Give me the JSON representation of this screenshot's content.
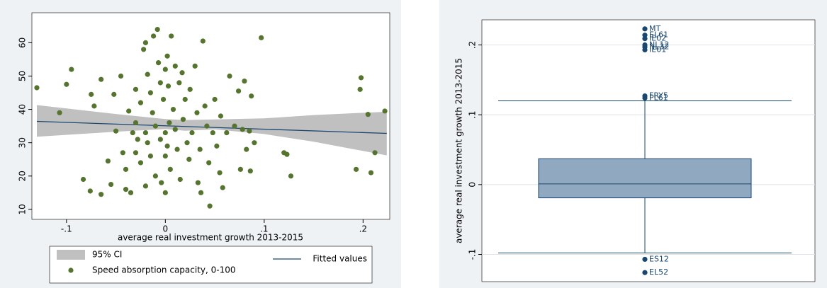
{
  "chart_data": [
    {
      "type": "scatter",
      "x_label": "average real investment growth 2013-2015",
      "xlim": [
        -0.135,
        0.227
      ],
      "xticks": [
        {
          "value": -0.1,
          "label": "-.1"
        },
        0,
        {
          "value": 0.1,
          "label": ".1"
        },
        {
          "value": 0.2,
          "label": ".2"
        }
      ],
      "ylim": [
        7,
        69
      ],
      "yticks": [
        10,
        20,
        30,
        40,
        50,
        60
      ],
      "grid": false,
      "legend": "bottom",
      "series": [
        {
          "name": "95% CI",
          "type": "area",
          "color": "#c0c0c0",
          "x": [
            -0.13,
            -0.05,
            0,
            0.02,
            0.05,
            0.1,
            0.15,
            0.224
          ],
          "lower": [
            31.8,
            33.3,
            34.1,
            33.6,
            34.0,
            32.6,
            30.3,
            26.2
          ],
          "upper": [
            41.3,
            38.6,
            37.1,
            36.8,
            37.0,
            37.3,
            38.3,
            39.3
          ]
        },
        {
          "name": "Fitted values",
          "type": "line",
          "color": "#1a476f",
          "x": [
            -0.13,
            0.224
          ],
          "values": [
            36.4,
            32.8
          ]
        },
        {
          "name": "Speed absorption capacity, 0-100",
          "type": "scatter",
          "color": "#55752f",
          "x": [
            -0.13,
            -0.107,
            -0.1,
            -0.095,
            -0.083,
            -0.076,
            -0.075,
            -0.072,
            -0.065,
            -0.065,
            -0.058,
            -0.055,
            -0.052,
            -0.05,
            -0.045,
            -0.043,
            -0.04,
            -0.04,
            -0.037,
            -0.035,
            -0.033,
            -0.03,
            -0.03,
            -0.03,
            -0.028,
            -0.025,
            -0.025,
            -0.022,
            -0.02,
            -0.02,
            -0.02,
            -0.018,
            -0.018,
            -0.015,
            -0.015,
            -0.013,
            -0.012,
            -0.01,
            -0.01,
            -0.008,
            -0.007,
            -0.005,
            -0.005,
            -0.004,
            -0.002,
            0,
            0,
            0,
            0,
            0.002,
            0.002,
            0.003,
            0.004,
            0.005,
            0.006,
            0.008,
            0.01,
            0.01,
            0.012,
            0.014,
            0.015,
            0.017,
            0.018,
            0.02,
            0.022,
            0.024,
            0.025,
            0.027,
            0.03,
            0.032,
            0.033,
            0.035,
            0.036,
            0.038,
            0.04,
            0.042,
            0.044,
            0.045,
            0.048,
            0.05,
            0.052,
            0.055,
            0.056,
            0.058,
            0.062,
            0.065,
            0.07,
            0.074,
            0.076,
            0.078,
            0.08,
            0.082,
            0.085,
            0.086,
            0.087,
            0.09,
            0.097,
            0.12,
            0.123,
            0.127,
            0.193,
            0.197,
            0.198,
            0.205,
            0.208,
            0.212,
            0.222
          ],
          "values": [
            46.5,
            39,
            47.5,
            52,
            19,
            15.5,
            44.5,
            41,
            14.5,
            49,
            24.5,
            17.5,
            44.5,
            33.5,
            50,
            27,
            22,
            16,
            39.5,
            15,
            33,
            46,
            36,
            27,
            31,
            42,
            24,
            58,
            60,
            33,
            17,
            50.5,
            30,
            45,
            26,
            39,
            62,
            35,
            20,
            64,
            54,
            48,
            31,
            18,
            43,
            52,
            33,
            26,
            15,
            56,
            29,
            47,
            36,
            22,
            62,
            40,
            53,
            34,
            28,
            48,
            19,
            51,
            37,
            43,
            30,
            25,
            46,
            33,
            53,
            39,
            18,
            28,
            15,
            60.5,
            41,
            35,
            24,
            11,
            33,
            43,
            29,
            21,
            38,
            16.5,
            33,
            50,
            35,
            45.5,
            22,
            34,
            48.5,
            28,
            33.5,
            21.5,
            44,
            30,
            61.5,
            27,
            26.5,
            20,
            22,
            46,
            49.5,
            38.5,
            21,
            27,
            39.5
          ]
        }
      ]
    },
    {
      "type": "box",
      "y_label": "average real investment growth 2013-2015",
      "ylim": [
        -0.139,
        0.236
      ],
      "yticks": [
        {
          "value": -0.1,
          "label": "-.1"
        },
        0,
        {
          "value": 0.1,
          "label": ".1"
        },
        {
          "value": 0.2,
          "label": ".2"
        }
      ],
      "grid": true,
      "color": "#90a8c0",
      "line_color": "#1a476f",
      "whisker_low": -0.098,
      "q1": -0.019,
      "median": 0.001,
      "q3": 0.037,
      "whisker_high": 0.12,
      "outliers": [
        {
          "label": "MT",
          "value": 0.223
        },
        {
          "label": "EL61",
          "value": 0.214
        },
        {
          "label": "IE02",
          "value": 0.209
        },
        {
          "label": "NL12",
          "value": 0.2
        },
        {
          "label": "NL32",
          "value": 0.197
        },
        {
          "label": "IE01",
          "value": 0.193
        },
        {
          "label": "FRY5",
          "value": 0.127
        },
        {
          "label": "PL61",
          "value": 0.124
        },
        {
          "label": "ES12",
          "value": -0.107
        },
        {
          "label": "EL52",
          "value": -0.126
        }
      ]
    }
  ]
}
